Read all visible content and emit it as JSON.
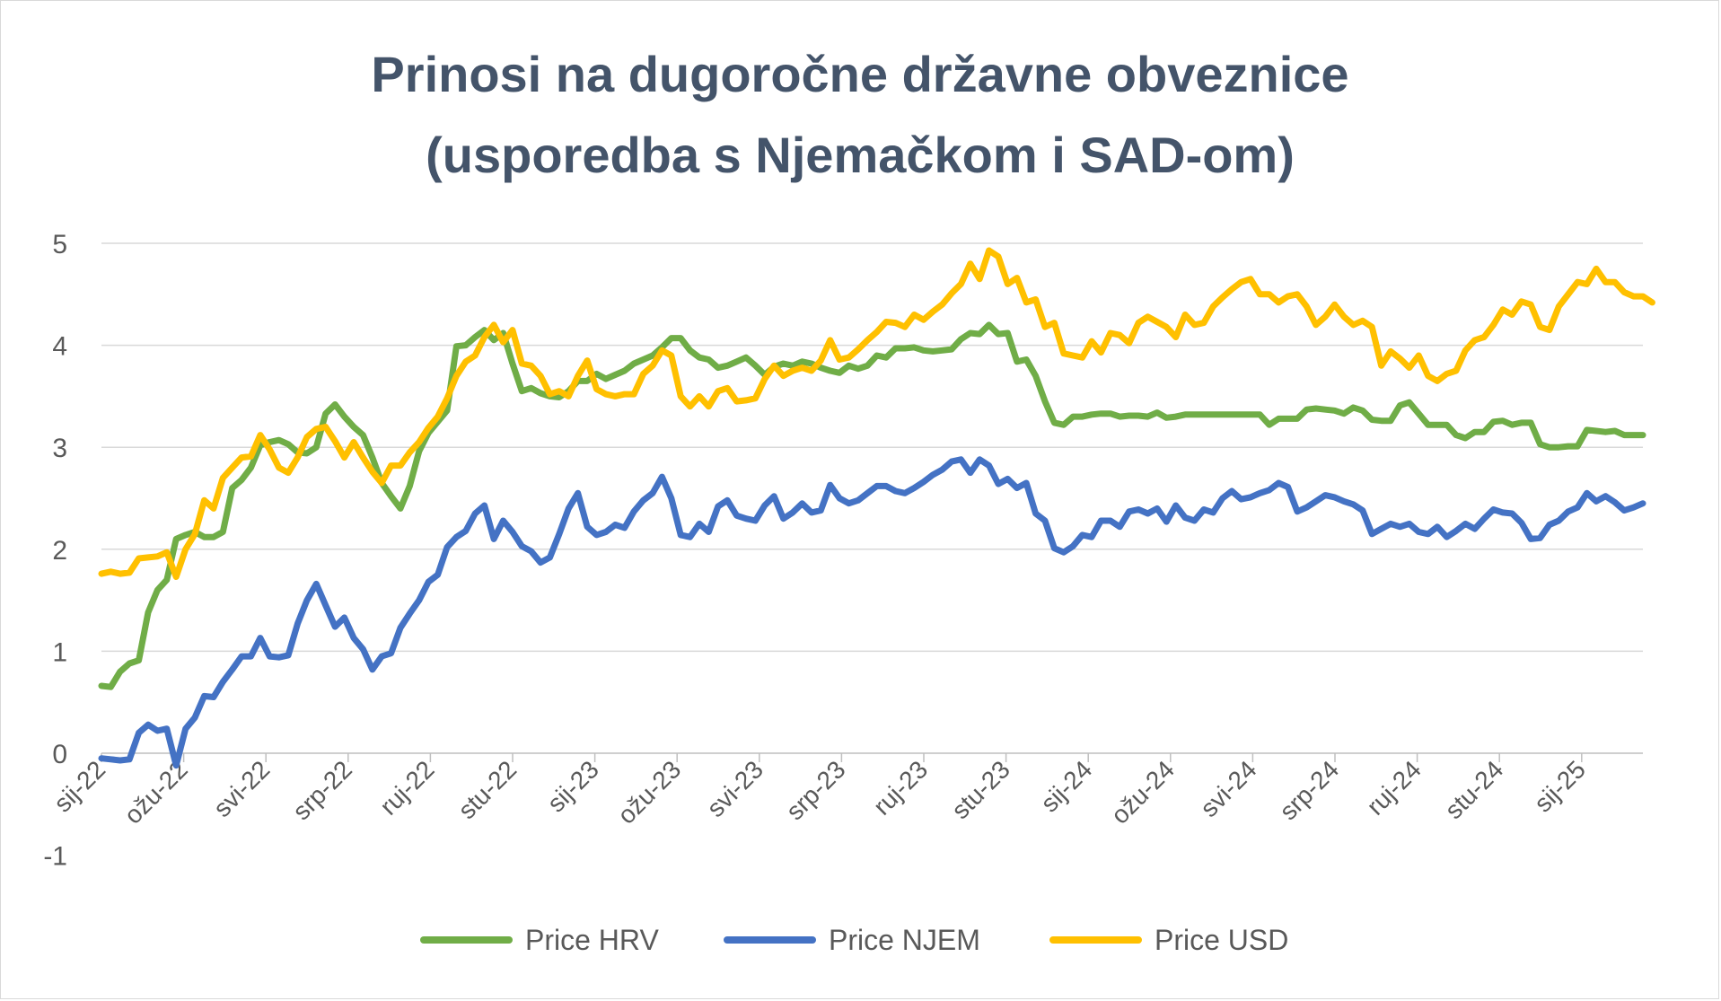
{
  "chart_data": {
    "type": "line",
    "title": [
      "Prinosi na dugoročne državne obveznice",
      "(usporedba s Njemačkom i SAD-om)"
    ],
    "xlabel": "",
    "ylabel": "",
    "ylim": [
      -1,
      5
    ],
    "yticks": [
      5,
      4,
      3,
      2,
      1,
      0,
      -1
    ],
    "grid": "horizontal",
    "legend_position": "bottom",
    "xticks": [
      "sij-22",
      "ožu-22",
      "svi-22",
      "srp-22",
      "ruj-22",
      "stu-22",
      "sij-23",
      "ožu-23",
      "svi-23",
      "srp-23",
      "ruj-23",
      "stu-23",
      "sij-24",
      "ožu-24",
      "svi-24",
      "srp-24",
      "ruj-24",
      "stu-24",
      "sij-25"
    ],
    "series": [
      {
        "name": "Price HRV",
        "color": "#70ad47",
        "values": [
          0.66,
          0.65,
          0.8,
          0.88,
          0.91,
          1.38,
          1.6,
          1.7,
          2.1,
          2.14,
          2.17,
          2.12,
          2.12,
          2.17,
          2.6,
          2.68,
          2.8,
          3.02,
          3.05,
          3.07,
          3.03,
          2.95,
          2.94,
          3.0,
          3.33,
          3.42,
          3.3,
          3.2,
          3.12,
          2.9,
          2.65,
          2.52,
          2.4,
          2.62,
          2.96,
          3.14,
          3.25,
          3.36,
          3.99,
          4.0,
          4.08,
          4.15,
          4.05,
          4.12,
          3.82,
          3.55,
          3.58,
          3.53,
          3.5,
          3.49,
          3.55,
          3.65,
          3.65,
          3.72,
          3.67,
          3.71,
          3.75,
          3.82,
          3.86,
          3.9,
          3.98,
          4.07,
          4.07,
          3.95,
          3.88,
          3.86,
          3.78,
          3.8,
          3.84,
          3.88,
          3.8,
          3.71,
          3.79,
          3.82,
          3.8,
          3.84,
          3.82,
          3.78,
          3.75,
          3.73,
          3.8,
          3.77,
          3.8,
          3.9,
          3.88,
          3.97,
          3.97,
          3.98,
          3.95,
          3.94,
          3.95,
          3.96,
          4.06,
          4.12,
          4.11,
          4.2,
          4.11,
          4.12,
          3.84,
          3.86,
          3.7,
          3.45,
          3.24,
          3.22,
          3.3,
          3.3,
          3.32,
          3.33,
          3.33,
          3.3,
          3.31,
          3.31,
          3.3,
          3.34,
          3.29,
          3.3,
          3.32,
          3.32,
          3.32,
          3.32,
          3.32,
          3.32,
          3.32,
          3.32,
          3.32,
          3.22,
          3.28,
          3.28,
          3.28,
          3.37,
          3.38,
          3.37,
          3.36,
          3.33,
          3.39,
          3.36,
          3.27,
          3.26,
          3.26,
          3.41,
          3.44,
          3.33,
          3.22,
          3.22,
          3.22,
          3.12,
          3.09,
          3.15,
          3.15,
          3.25,
          3.26,
          3.22,
          3.24,
          3.24,
          3.03,
          3.0,
          3.0,
          3.01,
          3.01,
          3.17,
          3.16,
          3.15,
          3.16,
          3.12,
          3.12,
          3.12
        ]
      },
      {
        "name": "Price NJEM",
        "color": "#4472c4",
        "values": [
          -0.05,
          -0.06,
          -0.07,
          -0.06,
          0.2,
          0.28,
          0.22,
          0.24,
          -0.12,
          0.24,
          0.35,
          0.56,
          0.55,
          0.7,
          0.82,
          0.95,
          0.95,
          1.13,
          0.95,
          0.94,
          0.96,
          1.27,
          1.5,
          1.66,
          1.45,
          1.24,
          1.33,
          1.13,
          1.02,
          0.82,
          0.95,
          0.98,
          1.23,
          1.37,
          1.5,
          1.68,
          1.75,
          2.02,
          2.12,
          2.18,
          2.35,
          2.43,
          2.1,
          2.28,
          2.17,
          2.03,
          1.98,
          1.87,
          1.92,
          2.15,
          2.4,
          2.55,
          2.22,
          2.14,
          2.17,
          2.24,
          2.21,
          2.37,
          2.48,
          2.55,
          2.71,
          2.5,
          2.14,
          2.12,
          2.25,
          2.17,
          2.42,
          2.48,
          2.33,
          2.3,
          2.28,
          2.43,
          2.52,
          2.3,
          2.36,
          2.45,
          2.36,
          2.38,
          2.63,
          2.5,
          2.45,
          2.48,
          2.55,
          2.62,
          2.62,
          2.57,
          2.55,
          2.6,
          2.66,
          2.73,
          2.78,
          2.86,
          2.88,
          2.75,
          2.88,
          2.82,
          2.64,
          2.69,
          2.6,
          2.65,
          2.35,
          2.28,
          2.01,
          1.97,
          2.03,
          2.14,
          2.12,
          2.28,
          2.28,
          2.22,
          2.37,
          2.39,
          2.35,
          2.4,
          2.27,
          2.43,
          2.31,
          2.28,
          2.39,
          2.36,
          2.5,
          2.57,
          2.49,
          2.51,
          2.55,
          2.58,
          2.65,
          2.61,
          2.37,
          2.41,
          2.47,
          2.53,
          2.51,
          2.47,
          2.44,
          2.38,
          2.15,
          2.2,
          2.25,
          2.22,
          2.25,
          2.17,
          2.15,
          2.22,
          2.12,
          2.18,
          2.25,
          2.2,
          2.3,
          2.39,
          2.36,
          2.35,
          2.26,
          2.1,
          2.11,
          2.24,
          2.28,
          2.37,
          2.41,
          2.55,
          2.47,
          2.52,
          2.46,
          2.38,
          2.41,
          2.45
        ]
      },
      {
        "name": "Price USD",
        "color": "#ffc000",
        "values": [
          1.76,
          1.78,
          1.76,
          1.77,
          1.91,
          1.92,
          1.93,
          1.97,
          1.73,
          2.0,
          2.15,
          2.48,
          2.4,
          2.7,
          2.8,
          2.9,
          2.91,
          3.12,
          2.98,
          2.8,
          2.75,
          2.9,
          3.1,
          3.18,
          3.2,
          3.06,
          2.9,
          3.05,
          2.9,
          2.76,
          2.65,
          2.82,
          2.82,
          2.95,
          3.05,
          3.19,
          3.3,
          3.48,
          3.7,
          3.84,
          3.9,
          4.08,
          4.2,
          4.03,
          4.15,
          3.82,
          3.8,
          3.7,
          3.52,
          3.55,
          3.5,
          3.7,
          3.85,
          3.57,
          3.52,
          3.5,
          3.52,
          3.52,
          3.72,
          3.8,
          3.95,
          3.9,
          3.5,
          3.4,
          3.5,
          3.4,
          3.55,
          3.58,
          3.45,
          3.46,
          3.48,
          3.67,
          3.8,
          3.7,
          3.75,
          3.78,
          3.75,
          3.85,
          4.05,
          3.86,
          3.88,
          3.96,
          4.05,
          4.13,
          4.23,
          4.22,
          4.18,
          4.3,
          4.25,
          4.33,
          4.4,
          4.51,
          4.6,
          4.8,
          4.65,
          4.93,
          4.87,
          4.6,
          4.66,
          4.42,
          4.45,
          4.18,
          4.22,
          3.92,
          3.9,
          3.88,
          4.04,
          3.93,
          4.12,
          4.1,
          4.02,
          4.22,
          4.28,
          4.23,
          4.18,
          4.08,
          4.3,
          4.2,
          4.22,
          4.38,
          4.47,
          4.55,
          4.62,
          4.65,
          4.5,
          4.5,
          4.42,
          4.48,
          4.5,
          4.38,
          4.2,
          4.28,
          4.4,
          4.28,
          4.2,
          4.24,
          4.18,
          3.8,
          3.94,
          3.87,
          3.78,
          3.9,
          3.7,
          3.65,
          3.72,
          3.75,
          3.95,
          4.05,
          4.08,
          4.2,
          4.35,
          4.3,
          4.43,
          4.4,
          4.18,
          4.15,
          4.38,
          4.5,
          4.62,
          4.6,
          4.75,
          4.62,
          4.62,
          4.52,
          4.48,
          4.48,
          4.42
        ]
      }
    ]
  }
}
